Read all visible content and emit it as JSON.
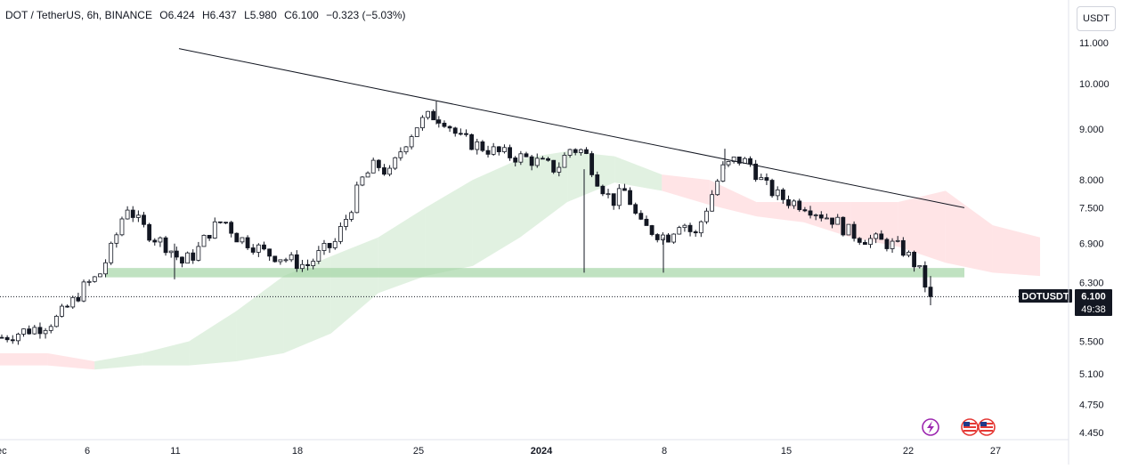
{
  "header": {
    "symbol": "DOT / TetherUS, 6h, BINANCE",
    "open": "O6.424",
    "high": "H6.437",
    "low": "L5.980",
    "close": "C6.100",
    "change": "−0.323 (−5.03%)"
  },
  "currency_button": "USDT",
  "price_tag": {
    "symbol": "DOTUSDT",
    "price": "6.100",
    "countdown": "49:38"
  },
  "colors": {
    "up_candle": "#131722",
    "down_candle": "#131722",
    "cloud_bull": "#c8e6c9",
    "cloud_bear": "#ffcdd2",
    "support_zone": "#a5d6a7"
  },
  "icons": [
    "lightning-icon",
    "us-flag-icon"
  ],
  "chart_data": {
    "type": "candlestick",
    "y_scale": "log",
    "yticks": [
      "11.000",
      "10.000",
      "9.000",
      "8.000",
      "7.500",
      "6.900",
      "6.300",
      "5.500",
      "5.100",
      "4.750",
      "4.450"
    ],
    "xticks": [
      "ec",
      "6",
      "11",
      "18",
      "25",
      "2024",
      "8",
      "15",
      "22",
      "27"
    ],
    "last_price": 6.1,
    "support_zone": [
      6.38,
      6.52
    ],
    "trendline": {
      "start": 10.85,
      "end": 7.5
    },
    "waypoints": [
      [
        5.55,
        5.6,
        5.65,
        5.7,
        5.8,
        6.0,
        6.25,
        6.4,
        6.85,
        7.55,
        7.2,
        7.0,
        6.85,
        6.6,
        6.75,
        7.1
      ],
      [
        7.3,
        7.0,
        6.9,
        6.75,
        6.7,
        6.62,
        6.55,
        6.75,
        6.9,
        7.4,
        8.0,
        8.3,
        8.1,
        8.7,
        9.1,
        9.3
      ],
      [
        9.2,
        8.8,
        8.7,
        8.6,
        8.5,
        8.45,
        8.4,
        8.3,
        8.2,
        8.6,
        8.55,
        8.0,
        7.6,
        7.8,
        7.2,
        7.1,
        7.0
      ],
      [
        7.3,
        7.0,
        7.6,
        8.2,
        8.4,
        8.3,
        7.9,
        7.7,
        7.6,
        7.55,
        7.4,
        7.3,
        7.1,
        7.0,
        6.95,
        6.9,
        6.8,
        6.55,
        6.1
      ]
    ],
    "cloud_top": [
      5.35,
      5.35,
      5.25,
      5.35,
      5.5,
      5.9,
      6.4,
      6.7,
      7.0,
      7.5,
      8.0,
      8.4,
      8.55,
      8.45,
      8.1,
      8.0,
      7.6,
      7.6,
      7.6,
      7.6,
      7.8,
      7.2,
      7.0
    ],
    "cloud_bottom": [
      5.2,
      5.2,
      5.15,
      5.2,
      5.2,
      5.25,
      5.35,
      5.6,
      6.15,
      6.4,
      6.55,
      7.0,
      7.6,
      7.95,
      7.8,
      7.55,
      7.35,
      7.25,
      7.0,
      6.85,
      6.6,
      6.45,
      6.4
    ],
    "cloud_colors": [
      "bear",
      "bear",
      "bull",
      "bull",
      "bull",
      "bull",
      "bull",
      "bull",
      "bull",
      "bull",
      "bull",
      "bull",
      "bull",
      "bull",
      "bear",
      "bear",
      "bear",
      "bear",
      "bear",
      "bear",
      "bear",
      "bear",
      "bear"
    ]
  }
}
